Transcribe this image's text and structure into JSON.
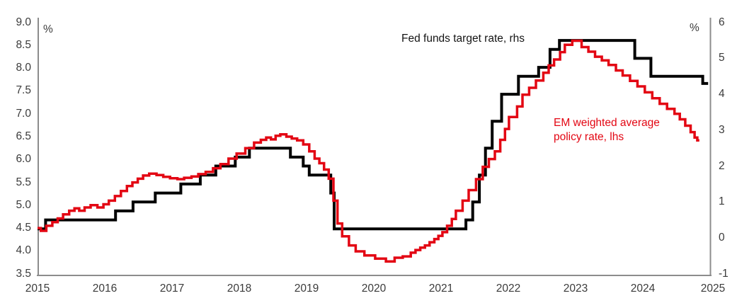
{
  "chart_data": {
    "type": "line",
    "title": "",
    "legend_position": "in-plot annotations",
    "grid": false,
    "colors": {
      "fed_line": "#000000",
      "em_line": "#e30613",
      "axis": "#8c8c8c",
      "tick_text": "#3b3b3b"
    },
    "x_axis": {
      "ticks": [
        "2015",
        "2016",
        "2017",
        "2018",
        "2019",
        "2020",
        "2021",
        "2022",
        "2023",
        "2024",
        "2025"
      ],
      "tick_values": [
        2015,
        2016,
        2017,
        2018,
        2019,
        2020,
        2021,
        2022,
        2023,
        2024,
        2025
      ],
      "range": [
        2015,
        2025
      ]
    },
    "left_axis": {
      "unit_label": "%",
      "ticks": [
        "9.0",
        "8.5",
        "8.0",
        "7.5",
        "7.0",
        "6.5",
        "6.0",
        "5.5",
        "5.0",
        "4.5",
        "4.0",
        "3.5"
      ],
      "tick_values": [
        9.0,
        8.5,
        8.0,
        7.5,
        7.0,
        6.5,
        6.0,
        5.5,
        5.0,
        4.5,
        4.0,
        3.5
      ],
      "range": [
        3.5,
        9.0
      ]
    },
    "right_axis": {
      "unit_label": "%",
      "ticks": [
        "6",
        "5",
        "4",
        "3",
        "2",
        "1",
        "0",
        "-1"
      ],
      "tick_values": [
        6,
        5,
        4,
        3,
        2,
        1,
        0,
        -1
      ],
      "range": [
        -1,
        6
      ]
    },
    "series": [
      {
        "name": "Fed funds target rate, rhs",
        "axis": "right",
        "step": true,
        "color": "#000000",
        "line_width": 4,
        "t_end": 2024.97,
        "label": {
          "text": "Fed funds target rate, rhs"
        },
        "points": [
          [
            2015.0,
            0.25
          ],
          [
            2015.12,
            0.5
          ],
          [
            2016.16,
            0.75
          ],
          [
            2016.42,
            1.0
          ],
          [
            2016.75,
            1.25
          ],
          [
            2017.13,
            1.5
          ],
          [
            2017.42,
            1.75
          ],
          [
            2017.65,
            2.0
          ],
          [
            2017.94,
            2.25
          ],
          [
            2018.15,
            2.5
          ],
          [
            2018.76,
            2.25
          ],
          [
            2018.95,
            2.0
          ],
          [
            2019.04,
            1.75
          ],
          [
            2019.36,
            1.25
          ],
          [
            2019.41,
            0.25
          ],
          [
            2021.37,
            0.5
          ],
          [
            2021.47,
            1.0
          ],
          [
            2021.57,
            1.75
          ],
          [
            2021.66,
            2.5
          ],
          [
            2021.76,
            3.25
          ],
          [
            2021.9,
            4.0
          ],
          [
            2022.15,
            4.5
          ],
          [
            2022.45,
            4.75
          ],
          [
            2022.62,
            5.25
          ],
          [
            2022.76,
            5.5
          ],
          [
            2023.88,
            5.0
          ],
          [
            2024.12,
            4.5
          ],
          [
            2024.89,
            4.3
          ]
        ]
      },
      {
        "name": "EM weighted average policy rate, lhs",
        "axis": "left",
        "step": true,
        "color": "#e30613",
        "line_width": 3.5,
        "t_end": 2024.84,
        "label": {
          "line1": "EM weighted average",
          "line2": "policy rate, lhs"
        },
        "points": [
          [
            2015.0,
            4.5
          ],
          [
            2015.05,
            4.44
          ],
          [
            2015.13,
            4.55
          ],
          [
            2015.22,
            4.63
          ],
          [
            2015.3,
            4.71
          ],
          [
            2015.38,
            4.8
          ],
          [
            2015.47,
            4.88
          ],
          [
            2015.55,
            4.93
          ],
          [
            2015.62,
            4.88
          ],
          [
            2015.7,
            4.95
          ],
          [
            2015.79,
            5.0
          ],
          [
            2015.89,
            4.95
          ],
          [
            2015.98,
            5.02
          ],
          [
            2016.06,
            5.1
          ],
          [
            2016.15,
            5.2
          ],
          [
            2016.24,
            5.31
          ],
          [
            2016.33,
            5.42
          ],
          [
            2016.41,
            5.5
          ],
          [
            2016.49,
            5.58
          ],
          [
            2016.57,
            5.65
          ],
          [
            2016.66,
            5.69
          ],
          [
            2016.77,
            5.66
          ],
          [
            2016.87,
            5.62
          ],
          [
            2016.97,
            5.59
          ],
          [
            2017.08,
            5.57
          ],
          [
            2017.18,
            5.6
          ],
          [
            2017.29,
            5.63
          ],
          [
            2017.39,
            5.68
          ],
          [
            2017.5,
            5.73
          ],
          [
            2017.61,
            5.81
          ],
          [
            2017.72,
            5.9
          ],
          [
            2017.84,
            6.02
          ],
          [
            2017.96,
            6.13
          ],
          [
            2018.09,
            6.25
          ],
          [
            2018.22,
            6.37
          ],
          [
            2018.32,
            6.43
          ],
          [
            2018.4,
            6.48
          ],
          [
            2018.47,
            6.44
          ],
          [
            2018.54,
            6.52
          ],
          [
            2018.61,
            6.55
          ],
          [
            2018.7,
            6.5
          ],
          [
            2018.78,
            6.46
          ],
          [
            2018.86,
            6.42
          ],
          [
            2018.95,
            6.33
          ],
          [
            2019.04,
            6.18
          ],
          [
            2019.12,
            6.02
          ],
          [
            2019.19,
            5.92
          ],
          [
            2019.26,
            5.78
          ],
          [
            2019.33,
            5.58
          ],
          [
            2019.4,
            5.1
          ],
          [
            2019.46,
            4.6
          ],
          [
            2019.53,
            4.32
          ],
          [
            2019.63,
            4.12
          ],
          [
            2019.73,
            3.99
          ],
          [
            2019.86,
            3.9
          ],
          [
            2020.02,
            3.83
          ],
          [
            2020.18,
            3.77
          ],
          [
            2020.31,
            3.85
          ],
          [
            2020.43,
            3.88
          ],
          [
            2020.55,
            3.96
          ],
          [
            2020.62,
            4.02
          ],
          [
            2020.69,
            4.07
          ],
          [
            2020.76,
            4.12
          ],
          [
            2020.83,
            4.19
          ],
          [
            2020.9,
            4.26
          ],
          [
            2020.96,
            4.33
          ],
          [
            2021.02,
            4.41
          ],
          [
            2021.09,
            4.55
          ],
          [
            2021.16,
            4.7
          ],
          [
            2021.22,
            4.88
          ],
          [
            2021.32,
            5.1
          ],
          [
            2021.41,
            5.33
          ],
          [
            2021.52,
            5.57
          ],
          [
            2021.62,
            5.84
          ],
          [
            2021.71,
            6.01
          ],
          [
            2021.8,
            6.18
          ],
          [
            2021.88,
            6.43
          ],
          [
            2021.95,
            6.67
          ],
          [
            2022.01,
            6.93
          ],
          [
            2022.13,
            7.16
          ],
          [
            2022.21,
            7.42
          ],
          [
            2022.31,
            7.57
          ],
          [
            2022.41,
            7.73
          ],
          [
            2022.52,
            7.9
          ],
          [
            2022.6,
            8.06
          ],
          [
            2022.68,
            8.19
          ],
          [
            2022.77,
            8.35
          ],
          [
            2022.84,
            8.51
          ],
          [
            2022.95,
            8.6
          ],
          [
            2023.09,
            8.46
          ],
          [
            2023.19,
            8.36
          ],
          [
            2023.29,
            8.25
          ],
          [
            2023.39,
            8.17
          ],
          [
            2023.49,
            8.07
          ],
          [
            2023.6,
            7.95
          ],
          [
            2023.7,
            7.84
          ],
          [
            2023.81,
            7.72
          ],
          [
            2023.92,
            7.6
          ],
          [
            2024.03,
            7.47
          ],
          [
            2024.14,
            7.34
          ],
          [
            2024.25,
            7.22
          ],
          [
            2024.36,
            7.11
          ],
          [
            2024.47,
            7.0
          ],
          [
            2024.55,
            6.88
          ],
          [
            2024.63,
            6.74
          ],
          [
            2024.71,
            6.6
          ],
          [
            2024.77,
            6.48
          ],
          [
            2024.81,
            6.42
          ]
        ]
      }
    ]
  }
}
